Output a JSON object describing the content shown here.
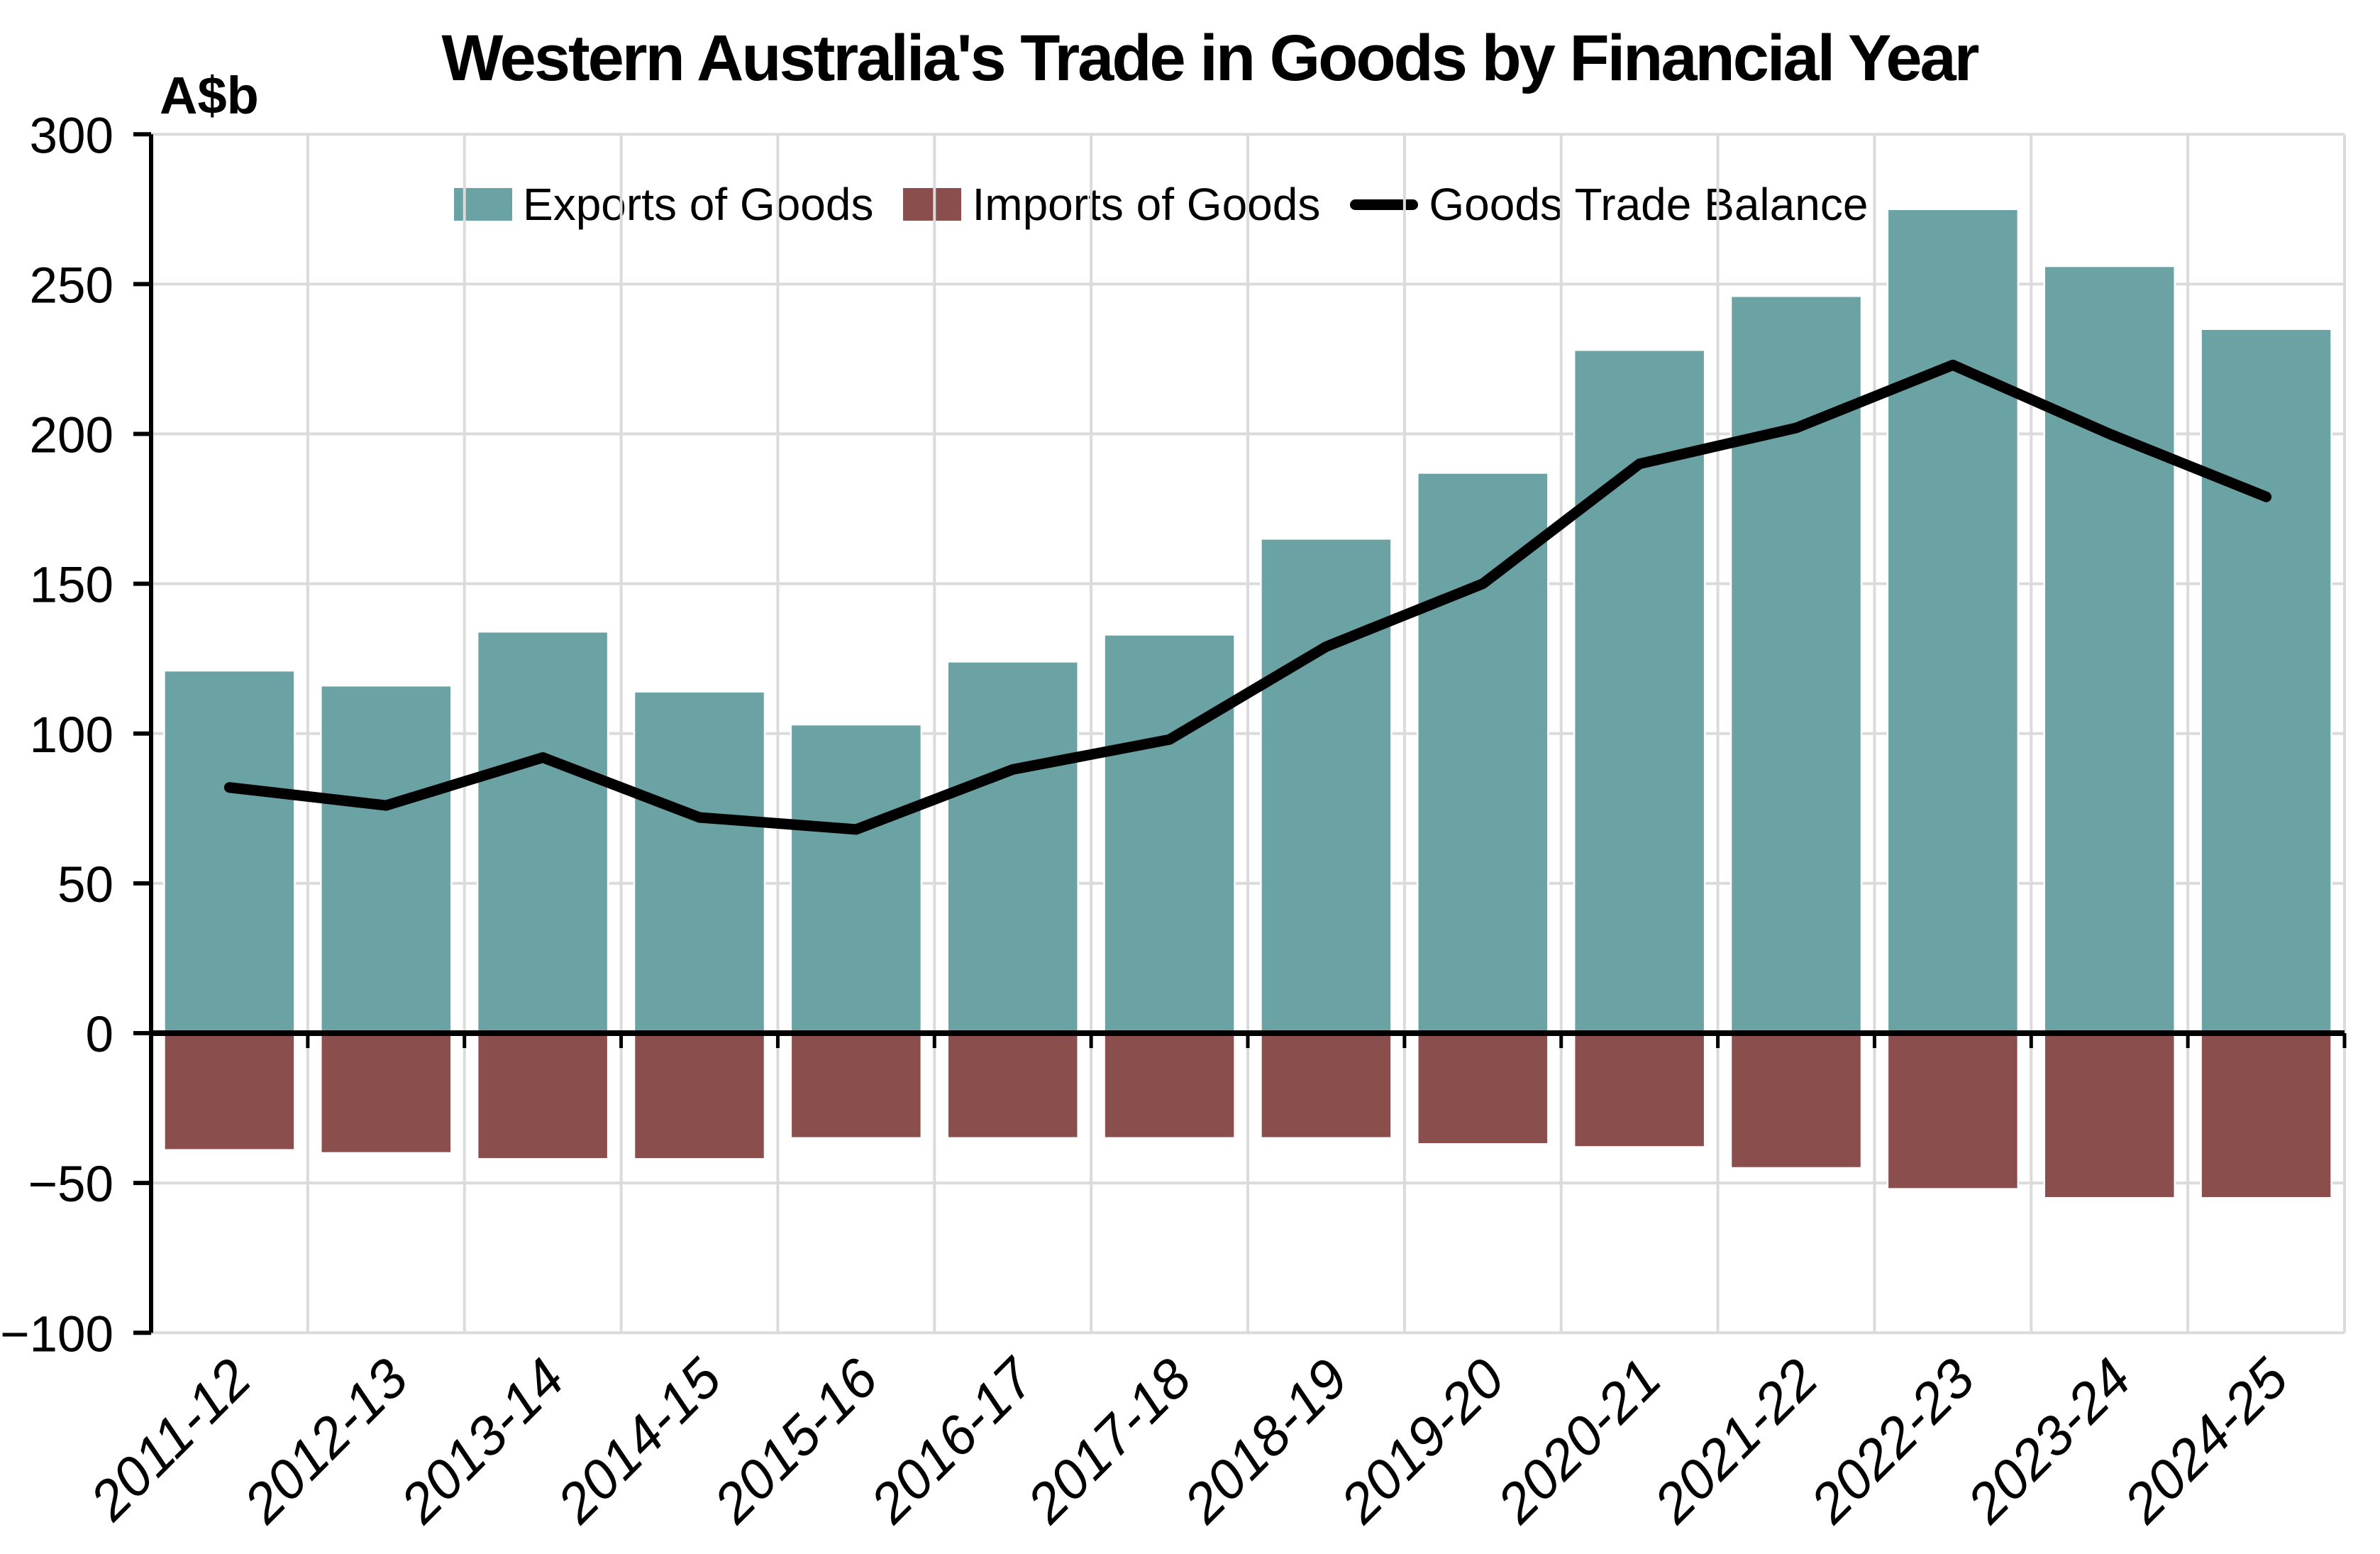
{
  "chart_data": {
    "type": "bar",
    "title": "Western Australia's Trade in Goods by Financial Year",
    "y_axis_unit": "A$b",
    "categories": [
      "2011-12",
      "2012-13",
      "2013-14",
      "2014-15",
      "2015-16",
      "2016-17",
      "2017-18",
      "2018-19",
      "2019-20",
      "2020-21",
      "2021-22",
      "2022-23",
      "2023-24",
      "2024-25"
    ],
    "series": [
      {
        "name": "Exports of Goods",
        "type": "bar",
        "color": "#6ba2a3",
        "values": [
          121,
          116,
          134,
          114,
          103,
          124,
          133,
          165,
          187,
          228,
          246,
          275,
          256,
          235
        ]
      },
      {
        "name": "Imports of Goods",
        "type": "bar",
        "color": "#8a4e4d",
        "values": [
          -39,
          -40,
          -42,
          -42,
          -35,
          -35,
          -35,
          -35,
          -37,
          -38,
          -45,
          -52,
          -55,
          -55
        ]
      },
      {
        "name": "Goods Trade Balance",
        "type": "line",
        "color": "#000000",
        "values": [
          82,
          76,
          92,
          72,
          68,
          88,
          98,
          129,
          150,
          190,
          202,
          223,
          200,
          179
        ]
      }
    ],
    "ylim": [
      -100,
      300
    ],
    "yticks": [
      {
        "value": 300,
        "label": "300"
      },
      {
        "value": 250,
        "label": "250"
      },
      {
        "value": 200,
        "label": "200"
      },
      {
        "value": 150,
        "label": "150"
      },
      {
        "value": 100,
        "label": "100"
      },
      {
        "value": 50,
        "label": "50"
      },
      {
        "value": 0,
        "label": "0"
      },
      {
        "value": -50,
        "label": "−50"
      },
      {
        "value": -100,
        "label": "−100"
      }
    ],
    "grid": true,
    "legend_position": "top-center"
  },
  "style": {
    "background": "#ffffff",
    "grid_color": "#dbdbdb",
    "axis_color": "#000000",
    "bar_edge_color": "#ffffff",
    "text_color": "#000000"
  }
}
